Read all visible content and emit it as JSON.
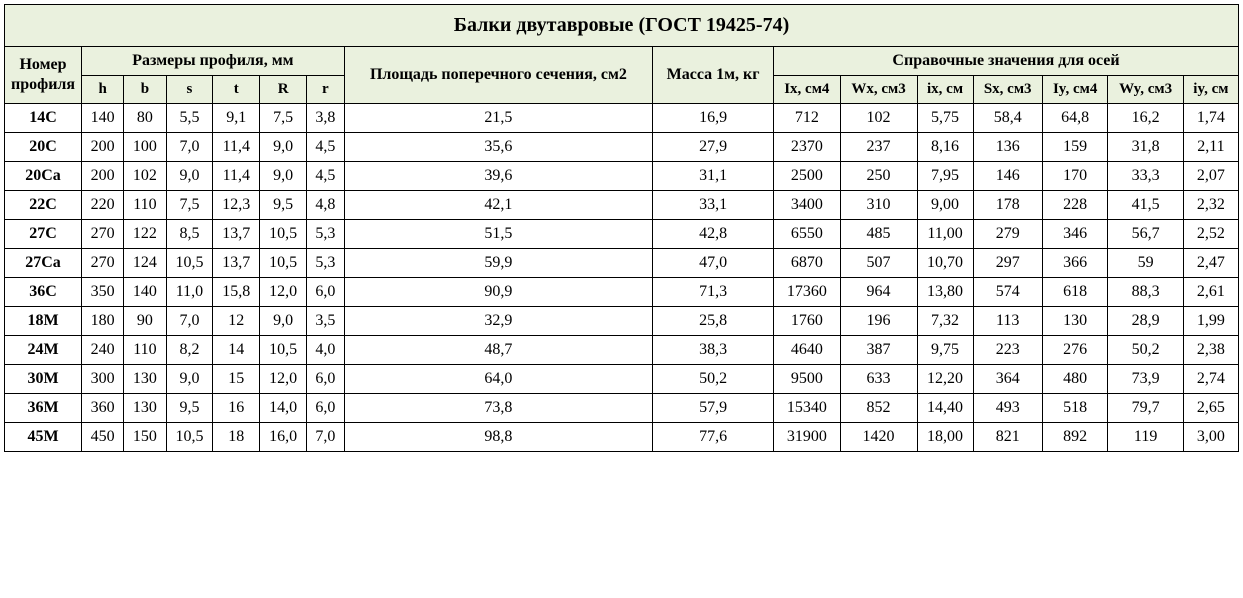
{
  "colors": {
    "header_bg": "#eaf1de",
    "border": "#000000",
    "text": "#000000",
    "page_bg": "#ffffff"
  },
  "title": "Балки двутавровые (ГОСТ 19425-74)",
  "header": {
    "group_profile": "Номер профиля",
    "group_dims": "Размеры профиля, мм",
    "group_area": "Площадь поперечного сечения, см2",
    "group_mass": "Масса 1м, кг",
    "group_axes": "Справочные значения для осей",
    "dims": {
      "h": "h",
      "b": "b",
      "s": "s",
      "t": "t",
      "R": "R",
      "r": "r"
    },
    "axes": {
      "Ix": "Ix, см4",
      "Wx": "Wx, см3",
      "ix": "ix, см",
      "Sx": "Sx, см3",
      "Iy": "Iy, см4",
      "Wy": "Wy, см3",
      "iy": "iy, см"
    }
  },
  "rows": [
    {
      "p": "14C",
      "h": "140",
      "b": "80",
      "s": "5,5",
      "t": "9,1",
      "R": "7,5",
      "r": "3,8",
      "A": "21,5",
      "m": "16,9",
      "Ix": "712",
      "Wx": "102",
      "ix": "5,75",
      "Sx": "58,4",
      "Iy": "64,8",
      "Wy": "16,2",
      "iy": "1,74"
    },
    {
      "p": "20C",
      "h": "200",
      "b": "100",
      "s": "7,0",
      "t": "11,4",
      "R": "9,0",
      "r": "4,5",
      "A": "35,6",
      "m": "27,9",
      "Ix": "2370",
      "Wx": "237",
      "ix": "8,16",
      "Sx": "136",
      "Iy": "159",
      "Wy": "31,8",
      "iy": "2,11"
    },
    {
      "p": "20Ca",
      "h": "200",
      "b": "102",
      "s": "9,0",
      "t": "11,4",
      "R": "9,0",
      "r": "4,5",
      "A": "39,6",
      "m": "31,1",
      "Ix": "2500",
      "Wx": "250",
      "ix": "7,95",
      "Sx": "146",
      "Iy": "170",
      "Wy": "33,3",
      "iy": "2,07"
    },
    {
      "p": "22C",
      "h": "220",
      "b": "110",
      "s": "7,5",
      "t": "12,3",
      "R": "9,5",
      "r": "4,8",
      "A": "42,1",
      "m": "33,1",
      "Ix": "3400",
      "Wx": "310",
      "ix": "9,00",
      "Sx": "178",
      "Iy": "228",
      "Wy": "41,5",
      "iy": "2,32"
    },
    {
      "p": "27C",
      "h": "270",
      "b": "122",
      "s": "8,5",
      "t": "13,7",
      "R": "10,5",
      "r": "5,3",
      "A": "51,5",
      "m": "42,8",
      "Ix": "6550",
      "Wx": "485",
      "ix": "11,00",
      "Sx": "279",
      "Iy": "346",
      "Wy": "56,7",
      "iy": "2,52"
    },
    {
      "p": "27Ca",
      "h": "270",
      "b": "124",
      "s": "10,5",
      "t": "13,7",
      "R": "10,5",
      "r": "5,3",
      "A": "59,9",
      "m": "47,0",
      "Ix": "6870",
      "Wx": "507",
      "ix": "10,70",
      "Sx": "297",
      "Iy": "366",
      "Wy": "59",
      "iy": "2,47"
    },
    {
      "p": "36C",
      "h": "350",
      "b": "140",
      "s": "11,0",
      "t": "15,8",
      "R": "12,0",
      "r": "6,0",
      "A": "90,9",
      "m": "71,3",
      "Ix": "17360",
      "Wx": "964",
      "ix": "13,80",
      "Sx": "574",
      "Iy": "618",
      "Wy": "88,3",
      "iy": "2,61"
    },
    {
      "p": "18M",
      "h": "180",
      "b": "90",
      "s": "7,0",
      "t": "12",
      "R": "9,0",
      "r": "3,5",
      "A": "32,9",
      "m": "25,8",
      "Ix": "1760",
      "Wx": "196",
      "ix": "7,32",
      "Sx": "113",
      "Iy": "130",
      "Wy": "28,9",
      "iy": "1,99"
    },
    {
      "p": "24M",
      "h": "240",
      "b": "110",
      "s": "8,2",
      "t": "14",
      "R": "10,5",
      "r": "4,0",
      "A": "48,7",
      "m": "38,3",
      "Ix": "4640",
      "Wx": "387",
      "ix": "9,75",
      "Sx": "223",
      "Iy": "276",
      "Wy": "50,2",
      "iy": "2,38"
    },
    {
      "p": "30M",
      "h": "300",
      "b": "130",
      "s": "9,0",
      "t": "15",
      "R": "12,0",
      "r": "6,0",
      "A": "64,0",
      "m": "50,2",
      "Ix": "9500",
      "Wx": "633",
      "ix": "12,20",
      "Sx": "364",
      "Iy": "480",
      "Wy": "73,9",
      "iy": "2,74"
    },
    {
      "p": "36M",
      "h": "360",
      "b": "130",
      "s": "9,5",
      "t": "16",
      "R": "14,0",
      "r": "6,0",
      "A": "73,8",
      "m": "57,9",
      "Ix": "15340",
      "Wx": "852",
      "ix": "14,40",
      "Sx": "493",
      "Iy": "518",
      "Wy": "79,7",
      "iy": "2,65"
    },
    {
      "p": "45M",
      "h": "450",
      "b": "150",
      "s": "10,5",
      "t": "18",
      "R": "16,0",
      "r": "7,0",
      "A": "98,8",
      "m": "77,6",
      "Ix": "31900",
      "Wx": "1420",
      "ix": "18,00",
      "Sx": "821",
      "Iy": "892",
      "Wy": "119",
      "iy": "3,00"
    }
  ]
}
